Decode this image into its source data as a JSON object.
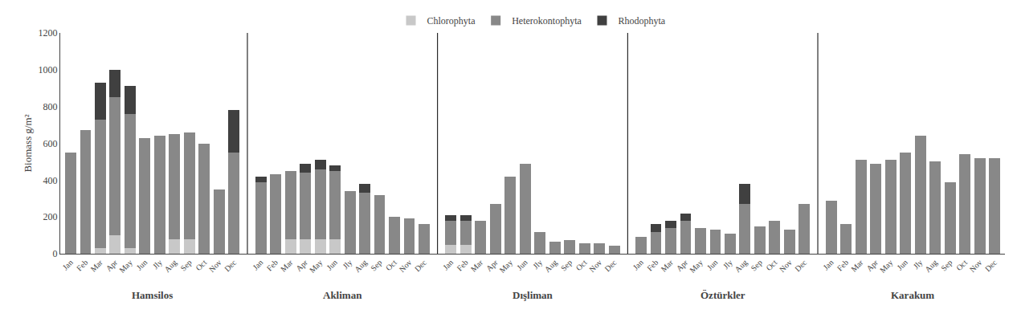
{
  "chart_data": {
    "type": "bar",
    "stacked": true,
    "ylabel": "Biomass g/m²",
    "groups": [
      "Hamsilos",
      "Akliman",
      "Dışliman",
      "Öztürkler",
      "Karakum"
    ],
    "categories": [
      "Jan",
      "Feb",
      "Mar",
      "Apr",
      "May",
      "Jun",
      "Jly",
      "Aug",
      "Sep",
      "Oct",
      "Nov",
      "Dec",
      "Jan",
      "Feb",
      "Mar",
      "Apr",
      "May",
      "Jun",
      "Jly",
      "Aug",
      "Sep",
      "Oct",
      "Nov",
      "Dec",
      "Jan",
      "Feb",
      "Mar",
      "Apr",
      "May",
      "Jun",
      "Jly",
      "Aug",
      "Sep",
      "Oct",
      "Nov",
      "Dec",
      "Jan",
      "Feb",
      "Mar",
      "Apr",
      "May",
      "Jun",
      "Jly",
      "Aug",
      "Sep",
      "Oct",
      "Nov",
      "Dec",
      "Jan",
      "Feb",
      "Mar",
      "Apr",
      "May",
      "Jun",
      "Jly",
      "Aug",
      "Sep",
      "Oct",
      "Nov",
      "Dec"
    ],
    "series": [
      {
        "name": "Chlorophyta",
        "color": "#c8c8c8",
        "values": [
          0,
          0,
          30,
          100,
          30,
          0,
          0,
          80,
          80,
          0,
          0,
          0,
          0,
          0,
          80,
          80,
          80,
          80,
          0,
          0,
          0,
          0,
          0,
          0,
          50,
          50,
          0,
          0,
          0,
          0,
          0,
          0,
          0,
          0,
          0,
          0,
          0,
          0,
          0,
          0,
          0,
          0,
          0,
          0,
          0,
          0,
          0,
          0,
          0,
          0,
          0,
          0,
          0,
          0,
          0,
          0,
          0,
          0,
          0,
          0
        ]
      },
      {
        "name": "Heterokontophyta",
        "color": "#888888",
        "values": [
          550,
          670,
          700,
          750,
          730,
          630,
          640,
          570,
          580,
          600,
          350,
          550,
          390,
          430,
          370,
          360,
          380,
          370,
          340,
          330,
          320,
          200,
          190,
          160,
          130,
          130,
          180,
          270,
          420,
          490,
          120,
          65,
          75,
          55,
          55,
          45,
          90,
          120,
          140,
          180,
          140,
          130,
          110,
          270,
          150,
          180,
          130,
          270,
          290,
          160,
          510,
          490,
          510,
          550,
          640,
          500,
          390,
          540,
          520,
          520
        ]
      },
      {
        "name": "Rhodophyta",
        "color": "#404040",
        "values": [
          0,
          0,
          200,
          150,
          150,
          0,
          0,
          0,
          0,
          0,
          0,
          230,
          30,
          0,
          0,
          50,
          50,
          30,
          0,
          50,
          0,
          0,
          0,
          0,
          30,
          30,
          0,
          0,
          0,
          0,
          0,
          0,
          0,
          0,
          0,
          0,
          0,
          40,
          40,
          40,
          0,
          0,
          0,
          110,
          0,
          0,
          0,
          0,
          0,
          0,
          0,
          0,
          0,
          0,
          0,
          0,
          0,
          0,
          0,
          0
        ]
      }
    ],
    "ylim": [
      0,
      1200
    ],
    "yticks": [
      0,
      200,
      400,
      600,
      800,
      1000,
      1200
    ],
    "grid": false,
    "legend": "top"
  }
}
